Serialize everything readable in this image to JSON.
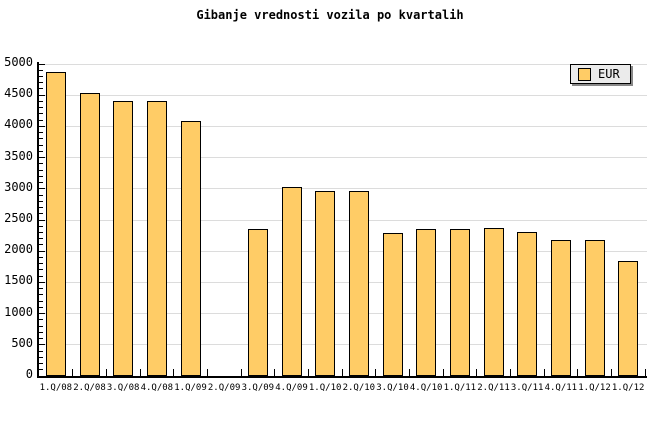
{
  "window": {
    "background": "#FFFFFF"
  },
  "title": "Gibanje vrednosti vozila po kvartalih",
  "legend": {
    "label": "EUR",
    "swatch_color": "#FFCC66"
  },
  "chart_data": {
    "type": "bar",
    "title": "Gibanje vrednosti vozila po kvartalih",
    "categories": [
      "1.Q/08",
      "2.Q/08",
      "3.Q/08",
      "4.Q/08",
      "1.Q/09",
      "2.Q/09",
      "3.Q/09",
      "4.Q/09",
      "1.Q/10",
      "2.Q/10",
      "3.Q/10",
      "4.Q/10",
      "1.Q/11",
      "2.Q/11",
      "3.Q/11",
      "4.Q/11",
      "1.Q/12",
      "1.Q/12"
    ],
    "series": [
      {
        "name": "EUR",
        "values": [
          4880,
          4540,
          4410,
          4410,
          4080,
          null,
          2360,
          3030,
          2960,
          2960,
          2290,
          2360,
          2360,
          2370,
          2300,
          2180,
          2180,
          1840
        ]
      }
    ],
    "xlabel": "",
    "ylabel": "",
    "ylim": [
      0,
      5000
    ],
    "ytick_step": 500,
    "y_minor_tick_step": 100,
    "grid": true,
    "legend_position": "top-right",
    "colors": {
      "bar_fill": "#FFCC66",
      "bar_border": "#000000",
      "grid": "#DCDCDC",
      "axis": "#000000",
      "text": "#000000",
      "legend_bg": "#EBEBEB",
      "legend_shadow": "#888888"
    }
  }
}
